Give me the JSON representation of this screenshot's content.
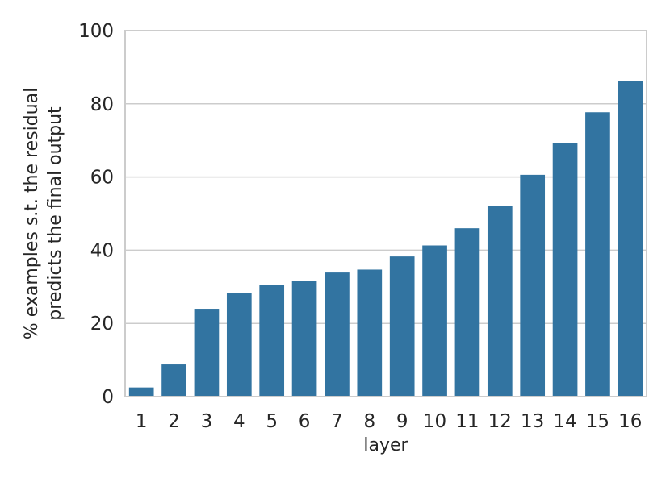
{
  "chart_data": {
    "type": "bar",
    "categories": [
      "1",
      "2",
      "3",
      "4",
      "5",
      "6",
      "7",
      "8",
      "9",
      "10",
      "11",
      "12",
      "13",
      "14",
      "15",
      "16"
    ],
    "values": [
      2.5,
      8.8,
      24.0,
      28.3,
      30.6,
      31.6,
      33.9,
      34.7,
      38.3,
      41.3,
      46.0,
      52.0,
      60.6,
      69.3,
      77.7,
      86.2
    ],
    "title": "",
    "xlabel": "layer",
    "ylabel": [
      "% examples s.t. the residual",
      "predicts the final output"
    ],
    "ylim": [
      0,
      100
    ],
    "yticks": [
      "0",
      "20",
      "40",
      "60",
      "80",
      "100"
    ],
    "grid": "horizontal",
    "bar_color": "#3274a1",
    "grid_color": "#cccccc",
    "axis_color": "#cccccc"
  }
}
